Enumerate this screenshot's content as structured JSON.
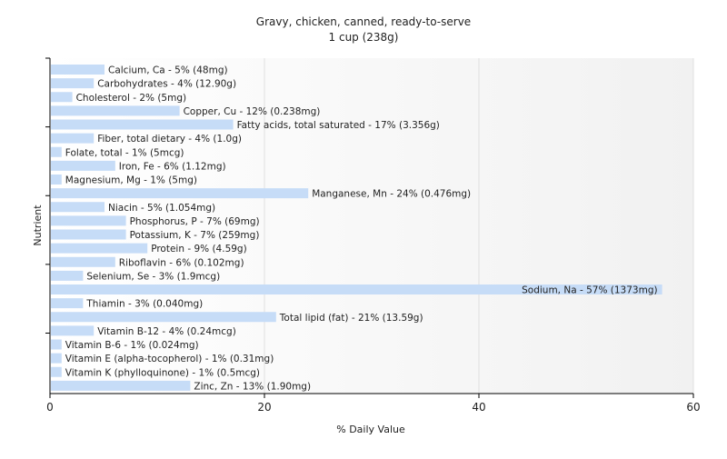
{
  "chart_data": {
    "type": "bar",
    "orientation": "horizontal",
    "title": "Gravy, chicken, canned, ready-to-serve",
    "subtitle": "1 cup (238g)",
    "xlabel": "% Daily Value",
    "ylabel": "Nutrient",
    "xlim": [
      0,
      60
    ],
    "xticks": [
      0,
      20,
      40,
      60
    ],
    "grid": true,
    "legend": "none",
    "bar_color": "#c6dcf7",
    "categories": [
      "Calcium, Ca",
      "Carbohydrates",
      "Cholesterol",
      "Copper, Cu",
      "Fatty acids, total saturated",
      "Fiber, total dietary",
      "Folate, total",
      "Iron, Fe",
      "Magnesium, Mg",
      "Manganese, Mn",
      "Niacin",
      "Phosphorus, P",
      "Potassium, K",
      "Protein",
      "Riboflavin",
      "Selenium, Se",
      "Sodium, Na",
      "Thiamin",
      "Total lipid (fat)",
      "Vitamin B-12",
      "Vitamin B-6",
      "Vitamin E (alpha-tocopherol)",
      "Vitamin K (phylloquinone)",
      "Zinc, Zn"
    ],
    "values": [
      5,
      4,
      2,
      12,
      17,
      4,
      1,
      6,
      1,
      24,
      5,
      7,
      7,
      9,
      6,
      3,
      57,
      3,
      21,
      4,
      1,
      1,
      1,
      13
    ],
    "labels": [
      "Calcium, Ca - 5% (48mg)",
      "Carbohydrates - 4% (12.90g)",
      "Cholesterol - 2% (5mg)",
      "Copper, Cu - 12% (0.238mg)",
      "Fatty acids, total saturated - 17% (3.356g)",
      "Fiber, total dietary - 4% (1.0g)",
      "Folate, total - 1% (5mcg)",
      "Iron, Fe - 6% (1.12mg)",
      "Magnesium, Mg - 1% (5mg)",
      "Manganese, Mn - 24% (0.476mg)",
      "Niacin - 5% (1.054mg)",
      "Phosphorus, P - 7% (69mg)",
      "Potassium, K - 7% (259mg)",
      "Protein - 9% (4.59g)",
      "Riboflavin - 6% (0.102mg)",
      "Selenium, Se - 3% (1.9mcg)",
      "Sodium, Na - 57% (1373mg)",
      "Thiamin - 3% (0.040mg)",
      "Total lipid (fat) - 21% (13.59g)",
      "Vitamin B-12 - 4% (0.24mcg)",
      "Vitamin B-6 - 1% (0.024mg)",
      "Vitamin E (alpha-tocopherol) - 1% (0.31mg)",
      "Vitamin K (phylloquinone) - 1% (0.5mcg)",
      "Zinc, Zn - 13% (1.90mg)"
    ]
  }
}
